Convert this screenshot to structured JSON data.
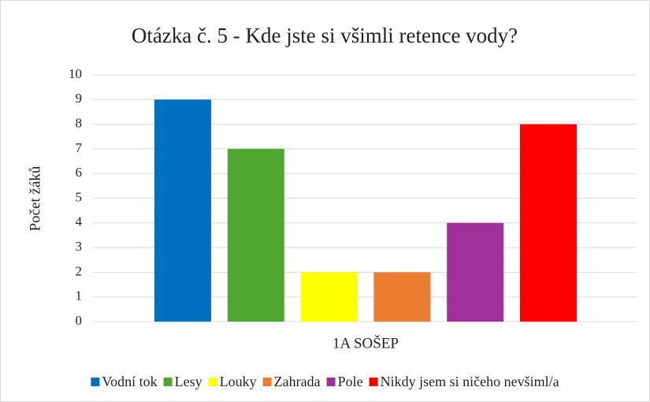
{
  "chart_data": {
    "type": "bar",
    "title": "Otázka č. 5 - Kde jste si všimli retence vody?",
    "ylabel": "Počet žáků",
    "categories": [
      "1A SOŠEP"
    ],
    "series": [
      {
        "name": "Vodní tok",
        "color": "#0070c0",
        "values": [
          9
        ]
      },
      {
        "name": "Lesy",
        "color": "#4ea72e",
        "values": [
          7
        ]
      },
      {
        "name": "Louky",
        "color": "#ffff00",
        "values": [
          2
        ]
      },
      {
        "name": "Zahrada",
        "color": "#ed7d31",
        "values": [
          2
        ]
      },
      {
        "name": "Pole",
        "color": "#a0309a",
        "values": [
          4
        ]
      },
      {
        "name": "Nikdy jsem si ničeho nevšiml/a",
        "color": "#ff0000",
        "values": [
          8
        ]
      }
    ],
    "ylim": [
      0,
      10
    ],
    "yticks": [
      0,
      1,
      2,
      3,
      4,
      5,
      6,
      7,
      8,
      9,
      10
    ],
    "grid": true,
    "legend": "bottom"
  }
}
